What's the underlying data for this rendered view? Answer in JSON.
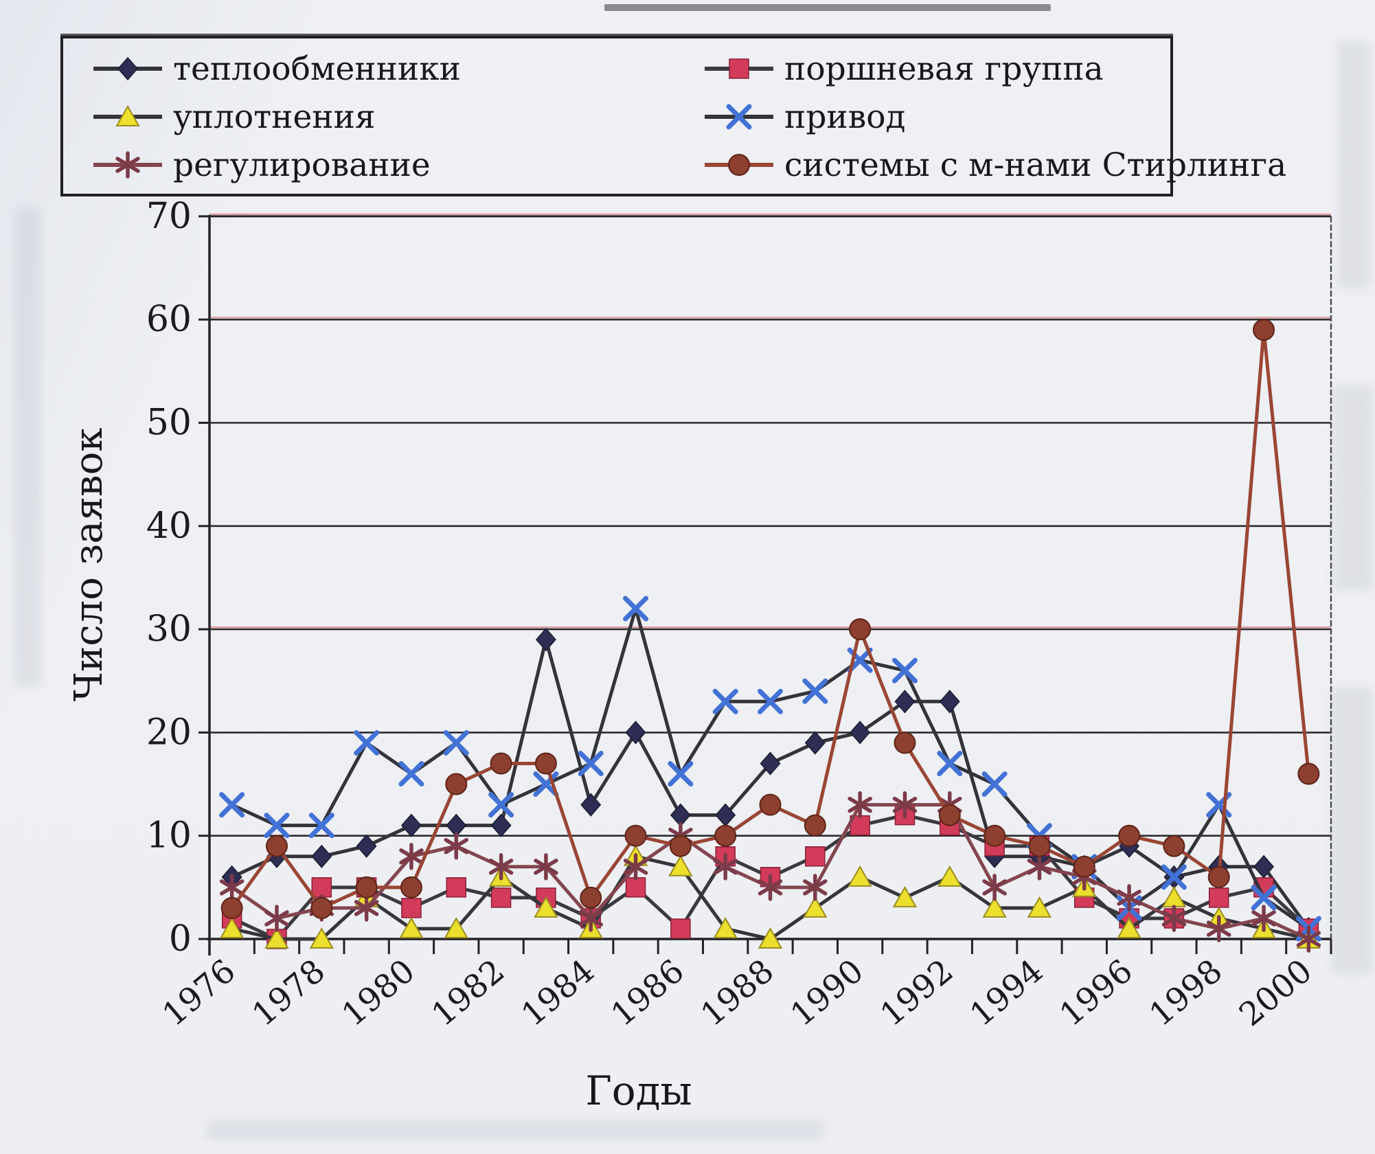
{
  "page": {
    "background_hint": "scanned book page, light gray"
  },
  "legend": {
    "items": [
      {
        "label": "теплообменники",
        "series": 0,
        "col": 0,
        "row": 0
      },
      {
        "label": "уплотнения",
        "series": 2,
        "col": 0,
        "row": 1
      },
      {
        "label": "регулирование",
        "series": 4,
        "col": 0,
        "row": 2
      },
      {
        "label": "поршневая группа",
        "series": 1,
        "col": 1,
        "row": 0
      },
      {
        "label": "привод",
        "series": 3,
        "col": 1,
        "row": 1
      },
      {
        "label": "системы с м-нами Стирлинга",
        "series": 5,
        "col": 1,
        "row": 2
      }
    ]
  },
  "axes": {
    "y_title": "Число заявок",
    "x_title": "Годы",
    "y_ticks": [
      0,
      10,
      20,
      30,
      40,
      50,
      60,
      70
    ],
    "x_label_every": 2
  },
  "chart_data": {
    "type": "line",
    "title": "",
    "xlabel": "Годы",
    "ylabel": "Число заявок",
    "ylim": [
      0,
      70
    ],
    "grid": "horizontal",
    "legend_position": "top-box",
    "x": [
      1976,
      1977,
      1978,
      1979,
      1980,
      1981,
      1982,
      1983,
      1984,
      1985,
      1986,
      1987,
      1988,
      1989,
      1990,
      1991,
      1992,
      1993,
      1994,
      1995,
      1996,
      1997,
      1998,
      1999,
      2000
    ],
    "series": [
      {
        "name": "теплообменники",
        "marker": "diamond",
        "marker_color": "#2e2e55",
        "line_color": "#33333a",
        "values": [
          6,
          8,
          8,
          9,
          11,
          11,
          11,
          29,
          13,
          20,
          12,
          12,
          17,
          19,
          20,
          23,
          23,
          8,
          8,
          7,
          9,
          6,
          7,
          7,
          1
        ]
      },
      {
        "name": "поршневая группа",
        "marker": "square",
        "marker_color": "#d23b5a",
        "line_color": "#3a3a40",
        "values": [
          2,
          0,
          5,
          5,
          3,
          5,
          4,
          4,
          2,
          5,
          1,
          8,
          6,
          8,
          11,
          12,
          11,
          9,
          9,
          4,
          2,
          2,
          4,
          5,
          1
        ]
      },
      {
        "name": "уплотнения",
        "marker": "triangle",
        "marker_color": "#ecdf2e",
        "line_color": "#35353b",
        "values": [
          1,
          0,
          0,
          4,
          1,
          1,
          6,
          3,
          1,
          8,
          7,
          1,
          0,
          3,
          6,
          4,
          6,
          3,
          3,
          5,
          1,
          4,
          2,
          1,
          0
        ]
      },
      {
        "name": "привод",
        "marker": "x",
        "marker_color": "#4272d6",
        "line_color": "#33333a",
        "values": [
          13,
          11,
          11,
          19,
          16,
          19,
          13,
          15,
          17,
          32,
          16,
          23,
          23,
          24,
          27,
          26,
          17,
          15,
          10,
          7,
          3,
          6,
          13,
          4,
          1
        ]
      },
      {
        "name": "регулирование",
        "marker": "asterisk",
        "marker_color": "#7c3b49",
        "line_color": "#84454f",
        "values": [
          5,
          2,
          3,
          3,
          8,
          9,
          7,
          7,
          2,
          7,
          10,
          7,
          5,
          5,
          13,
          13,
          13,
          5,
          7,
          6,
          4,
          2,
          1,
          2,
          0
        ]
      },
      {
        "name": "системы с м-нами Стирлинга",
        "marker": "circle",
        "marker_color": "#8d4030",
        "line_color": "#9a4634",
        "values": [
          3,
          9,
          3,
          5,
          5,
          15,
          17,
          17,
          4,
          10,
          9,
          10,
          13,
          11,
          30,
          19,
          12,
          10,
          9,
          7,
          10,
          9,
          6,
          59,
          16
        ]
      }
    ]
  }
}
